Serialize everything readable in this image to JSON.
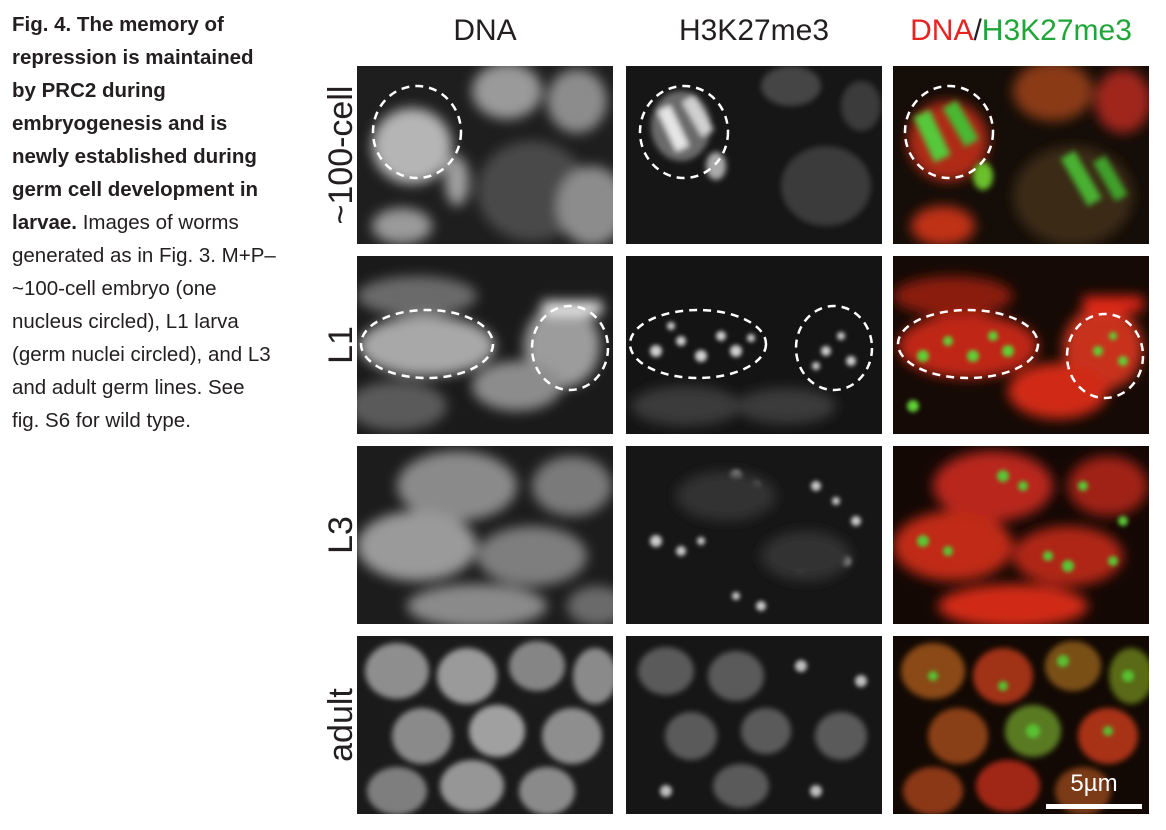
{
  "caption": {
    "title": "Fig. 4. The memory of repression is maintained by PRC2 during embryogenesis and is newly established during germ cell development in larvae.",
    "body": "Images of worms generated as in Fig. 3. M+P– ~100-cell embryo (one nucleus circled), L1 larva (germ nuclei circled), and L3 and adult germ lines. See fig. S6 for wild type."
  },
  "columns": {
    "dna": "DNA",
    "h3k": "H3K27me3",
    "merge_dna": "DNA",
    "merge_sep": "/",
    "merge_h3k": "H3K27me3"
  },
  "rows": {
    "r1": "~100-cell",
    "r2": "L1",
    "r3": "L3",
    "r4": "adult"
  },
  "scale_bar": "5µm",
  "colors": {
    "dna": "#e8221f",
    "h3k": "#1fa538"
  }
}
